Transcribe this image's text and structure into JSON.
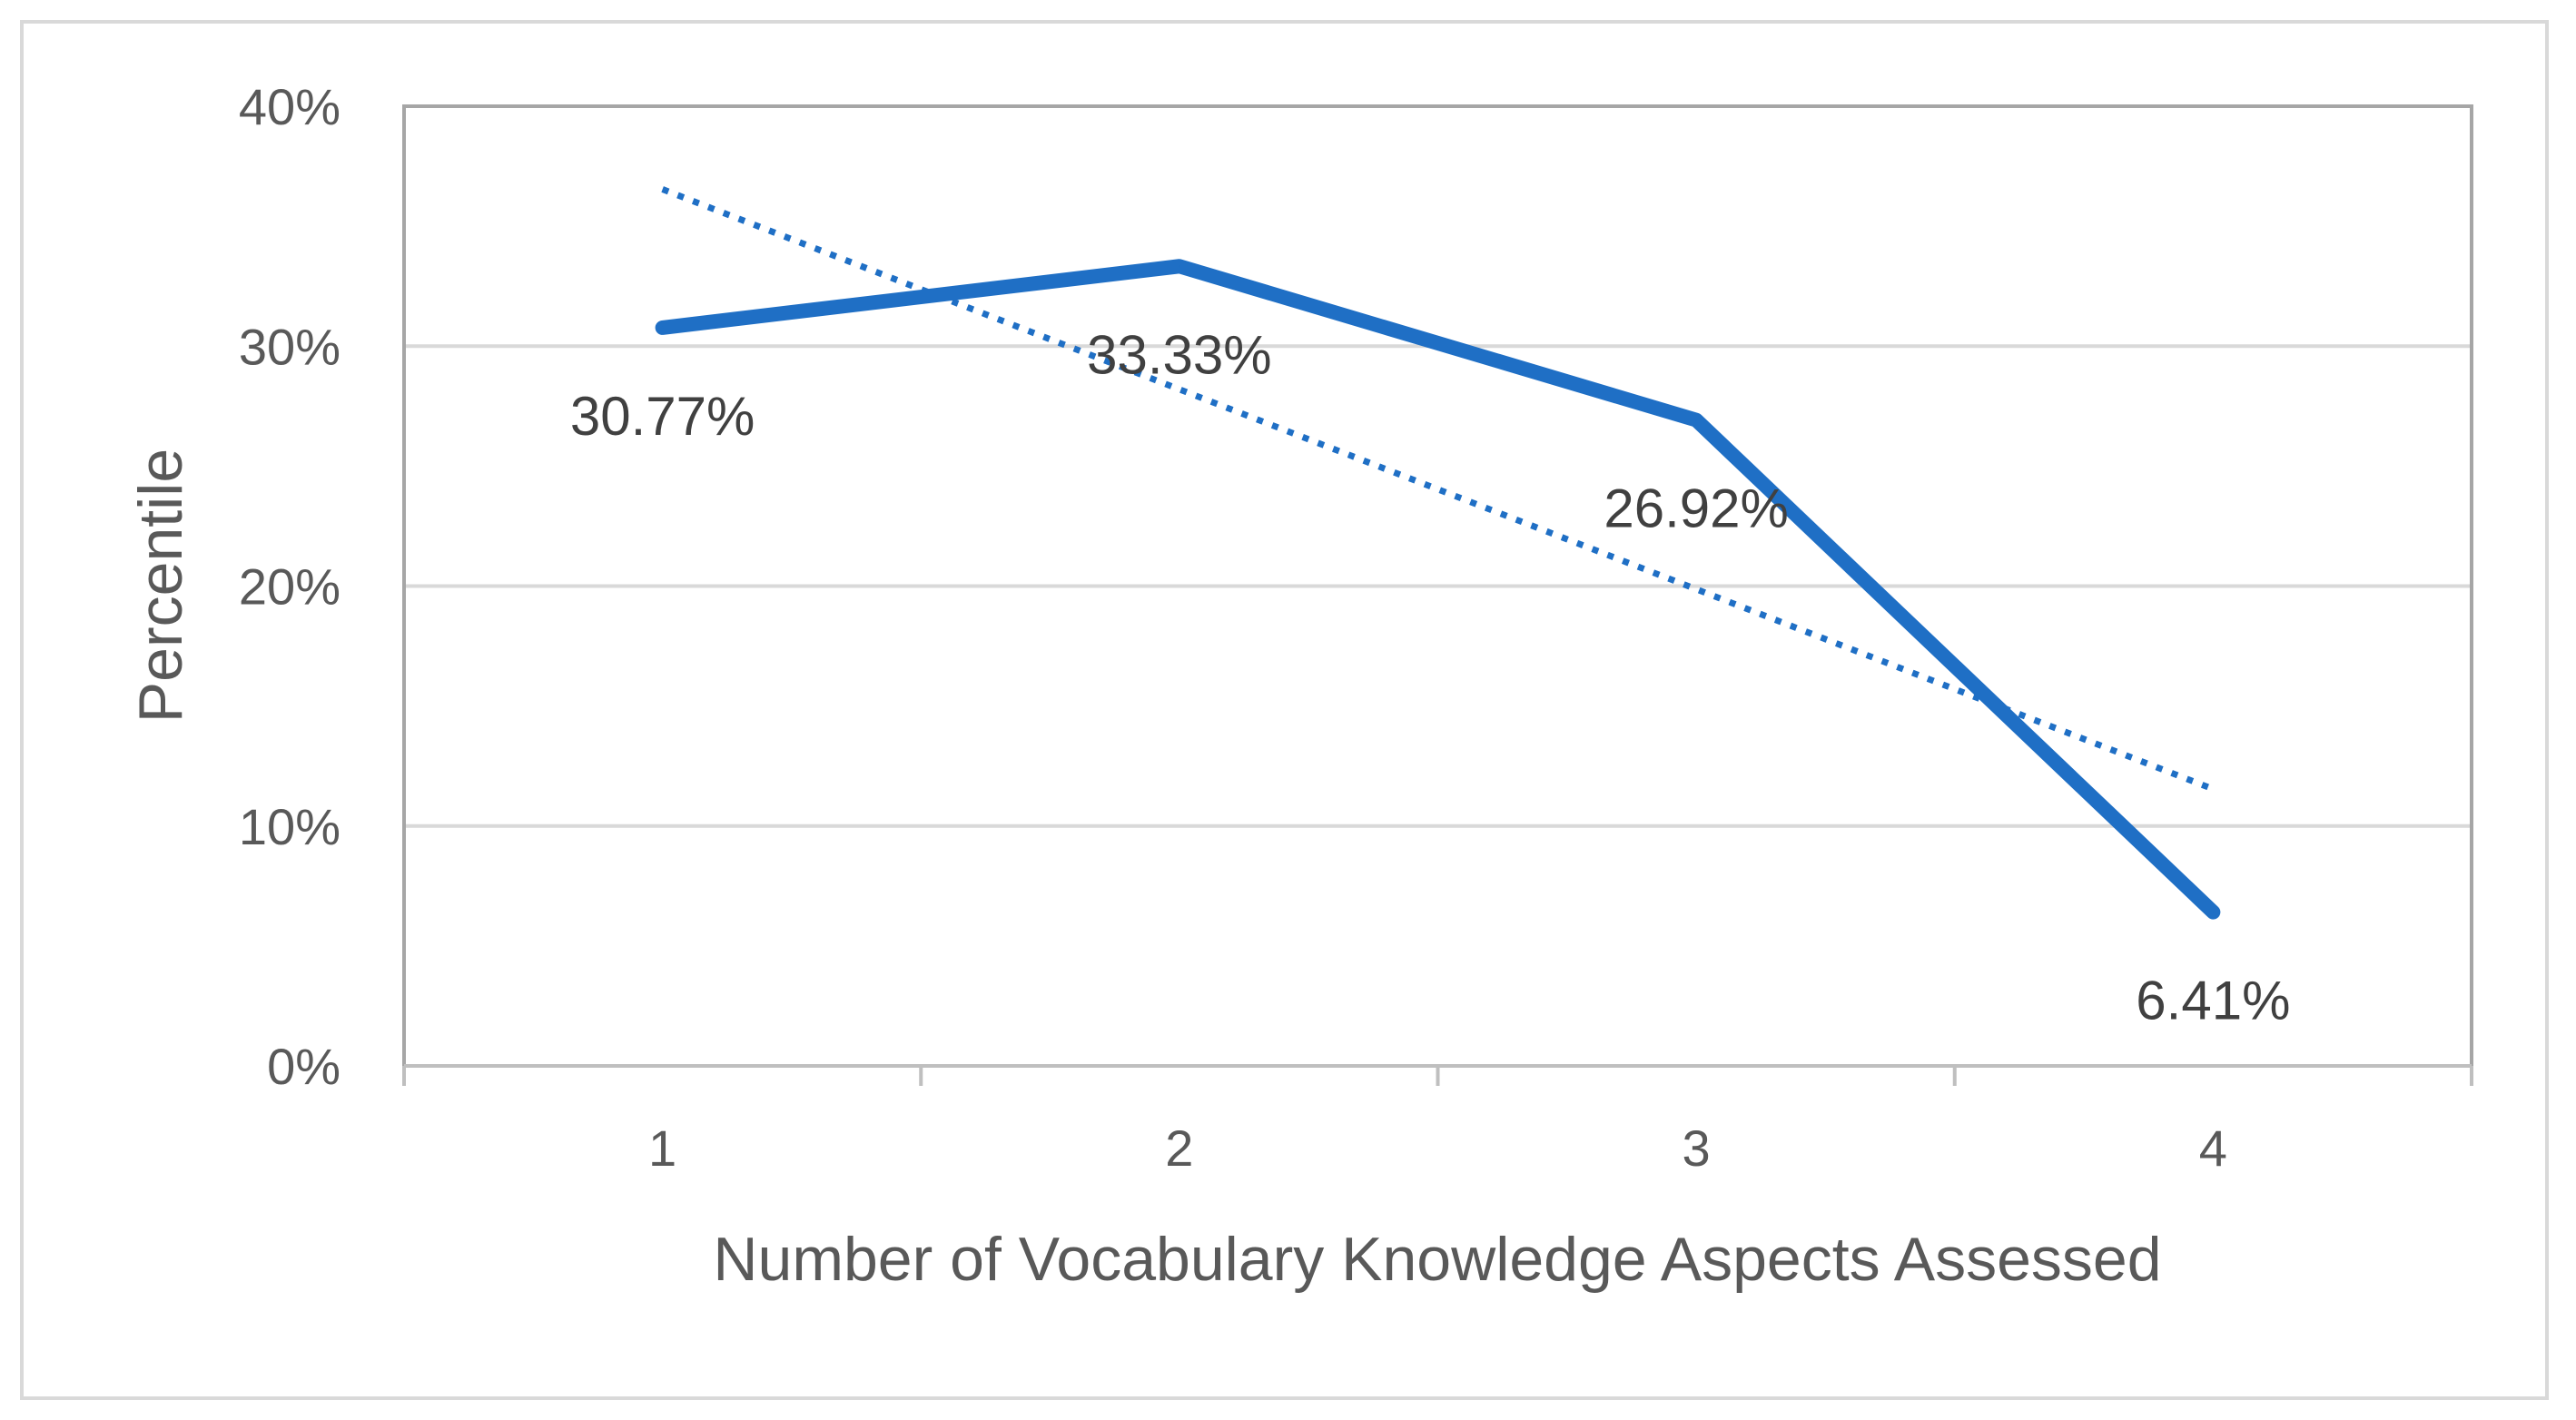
{
  "chart_data": {
    "type": "line",
    "title": "",
    "xlabel": "Number of Vocabulary Knowledge Aspects Assessed",
    "ylabel": "Percentile",
    "categories": [
      "1",
      "2",
      "3",
      "4"
    ],
    "ylim": [
      0,
      0.4
    ],
    "yticks": [
      0,
      0.1,
      0.2,
      0.3,
      0.4
    ],
    "ytick_labels": [
      "0%",
      "10%",
      "20%",
      "30%",
      "40%"
    ],
    "grid": true,
    "legend": "none",
    "series": [
      {
        "values": [
          0.3077,
          0.3333,
          0.2692,
          0.0641
        ],
        "data_labels": [
          "30.77%",
          "33.33%",
          "26.92%",
          "6.41%"
        ],
        "color": "#1f6fc5",
        "style": "solid"
      }
    ],
    "trendline": {
      "type": "linear",
      "values": [
        0.3654,
        0.282,
        0.1987,
        0.1154
      ],
      "color": "#1f6fc5",
      "style": "dotted"
    }
  }
}
